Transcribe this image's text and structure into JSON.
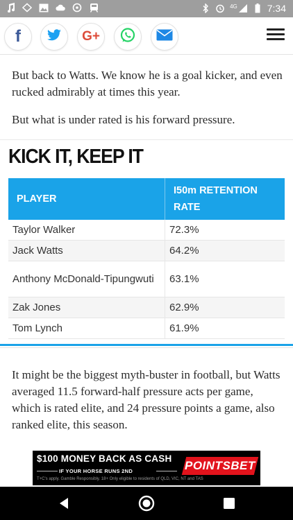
{
  "status_bar": {
    "time": "7:34",
    "network": "4G",
    "left_icons": [
      "music-note-icon",
      "location-icon",
      "image-icon",
      "cloud-icon",
      "ubuntu-icon",
      "train-icon"
    ],
    "right_icons": [
      "bluetooth-icon",
      "alarm-icon",
      "signal-icon",
      "battery-icon"
    ]
  },
  "share_bar": {
    "buttons": [
      {
        "name": "facebook",
        "glyph": "f",
        "color": "#3b5998"
      },
      {
        "name": "twitter",
        "glyph": "🐦",
        "color": "#1da1f2"
      },
      {
        "name": "google-plus",
        "glyph": "G+",
        "color": "#dd4b39"
      },
      {
        "name": "whatsapp",
        "glyph": "✆",
        "color": "#25d366"
      },
      {
        "name": "email",
        "glyph": "✉",
        "color": "#1e88e5"
      }
    ],
    "menu_icon": "hamburger-menu-icon"
  },
  "article": {
    "para1": "But back to Watts. We know he is a goal kicker, and even rucked admirably at times this year.",
    "para2": "But what is under rated is his forward pressure.",
    "heading": "KICK IT, KEEP IT",
    "table": {
      "headers": [
        "PLAYER",
        "I50m RETENTION RATE"
      ],
      "rows": [
        {
          "player": "Taylor Walker",
          "rate": "72.3%"
        },
        {
          "player": "Jack Watts",
          "rate": "64.2%"
        },
        {
          "player": "Anthony McDonald-Tipungwuti",
          "rate": "63.1%"
        },
        {
          "player": "Zak Jones",
          "rate": "62.9%"
        },
        {
          "player": "Tom Lynch",
          "rate": "61.9%"
        }
      ]
    },
    "para3": "It might be the biggest myth-buster in football, but Watts averaged 11.5 forward-half pressure acts per game, which is rated elite, and 24 pressure points a game, also ranked elite, this season."
  },
  "ad": {
    "headline": "$100 MONEY BACK AS CASH",
    "subline": "IF YOUR HORSE RUNS 2ND",
    "fine_print": "T+C's apply. Gamble Responsibly. 18+ Only eligible to residents of QLD, VIC, NT and TAS",
    "brand": "POINTSBET",
    "brand_color": "#e2131c"
  },
  "nav_bar": {
    "buttons": [
      "back-icon",
      "home-icon",
      "recents-icon"
    ]
  },
  "colors": {
    "accent": "#1aa3e8",
    "status_bar": "#9e9e9e"
  }
}
